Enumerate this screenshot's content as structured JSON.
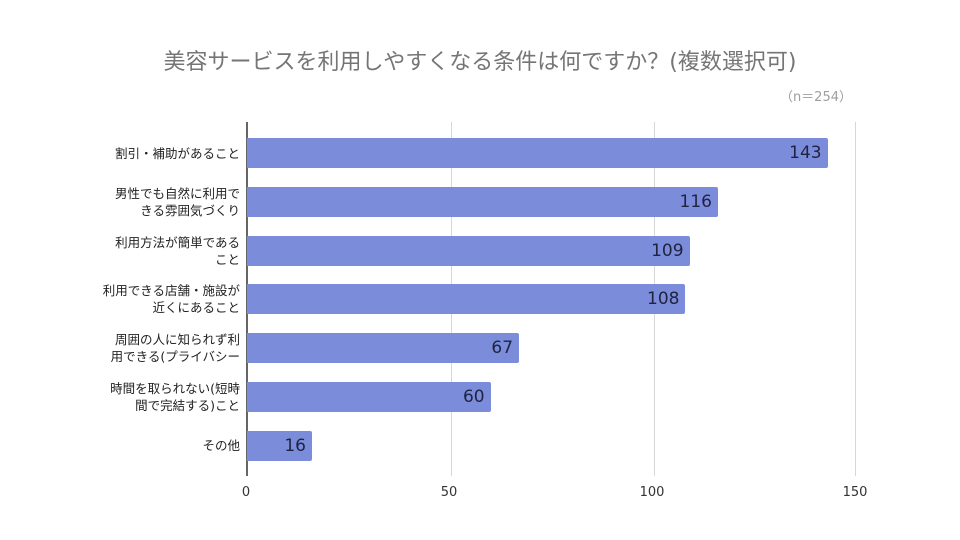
{
  "chart_data": {
    "type": "bar",
    "orientation": "horizontal",
    "title": "美容サービスを利用しやすくなる条件は何ですか？(複数選択可)",
    "subtitle": "（n＝254）",
    "xlabel": "",
    "ylabel": "",
    "xlim": [
      0,
      150
    ],
    "x_ticks": [
      "0",
      "50",
      "100",
      "150"
    ],
    "grid": true,
    "legend": null,
    "bar_color": "#7b8cdb",
    "categories": [
      "割引・補助があること",
      "男性でも自然に利用できる雰囲気づくり",
      "利用方法が簡単であること",
      "利用できる店舗・施設が近くにあること",
      "周囲の人に知られず利用できる(プライバシー",
      "時間を取られない(短時間で完結する)こと",
      "その他"
    ],
    "category_lines": [
      [
        "割引・補助があること"
      ],
      [
        "男性でも自然に利用で",
        "きる雰囲気づくり"
      ],
      [
        "利用方法が簡単である",
        "こと"
      ],
      [
        "利用できる店舗・施設が",
        "近くにあること"
      ],
      [
        "周囲の人に知られず利",
        "用できる(プライバシー"
      ],
      [
        "時間を取られない(短時",
        "間で完結する)こと"
      ],
      [
        "その他"
      ]
    ],
    "values": [
      143,
      116,
      109,
      108,
      67,
      60,
      16
    ],
    "value_labels": [
      "143",
      "116",
      "109",
      "108",
      "67",
      "60",
      "16"
    ]
  }
}
